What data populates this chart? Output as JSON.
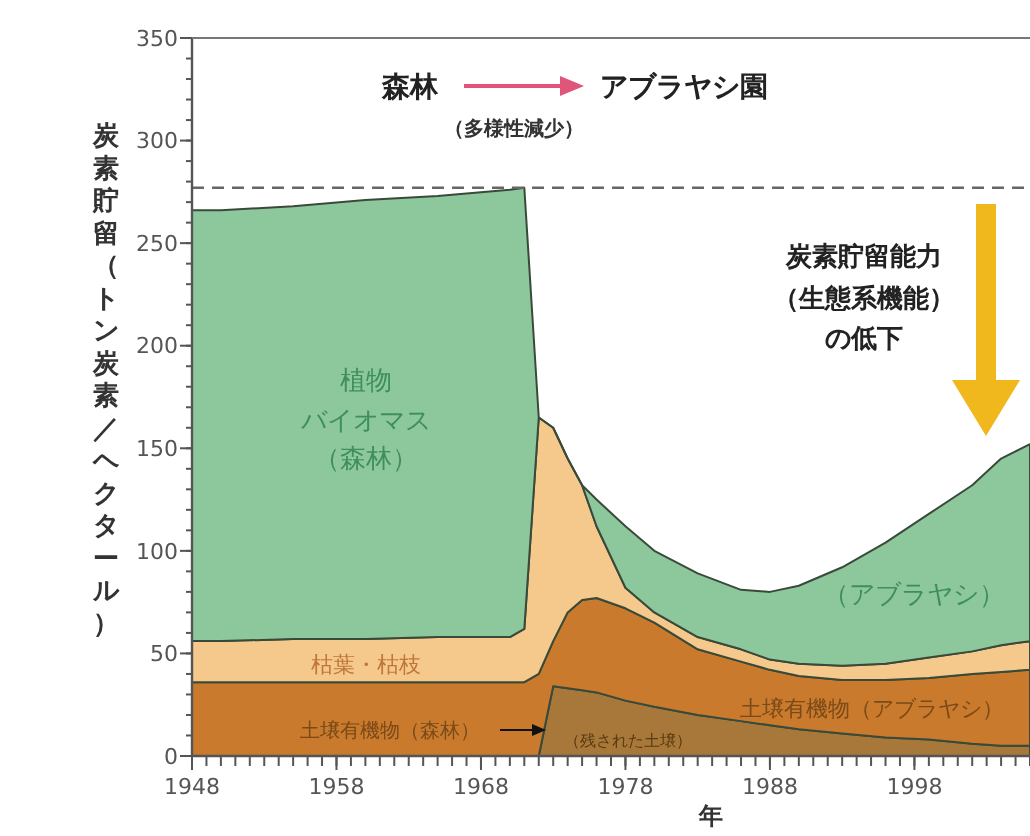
{
  "chart_data": {
    "type": "area",
    "stacked": true,
    "xlabel": "年",
    "ylabel": "炭素貯留（トン炭素／ヘクタール）",
    "x": [
      1948,
      1950,
      1955,
      1960,
      1965,
      1970,
      1971,
      1972,
      1973,
      1974,
      1975,
      1976,
      1978,
      1980,
      1983,
      1986,
      1988,
      1990,
      1993,
      1996,
      1999,
      2002,
      2004,
      2006
    ],
    "series": [
      {
        "color": "#a8783a",
        "values": [
          0,
          0,
          0,
          0,
          0,
          0,
          0,
          0,
          34,
          33,
          32,
          31,
          27,
          24,
          20,
          17,
          15,
          13,
          11,
          9,
          8,
          6,
          5,
          5
        ]
      },
      {
        "color": "#c97a2c",
        "values": [
          36,
          36,
          36,
          36,
          36,
          36,
          36,
          40,
          22,
          37,
          44,
          46,
          45,
          41,
          32,
          29,
          27,
          26,
          26,
          28,
          30,
          34,
          36,
          37
        ]
      },
      {
        "color": "#f5c98c",
        "values": [
          20,
          20,
          21,
          21,
          22,
          22,
          26,
          125,
          104,
          75,
          56,
          35,
          10,
          5,
          6,
          6,
          5,
          6,
          7,
          8,
          10,
          11,
          13,
          14
        ]
      },
      {
        "color": "#8dc89d",
        "values": [
          210,
          210,
          211,
          214,
          215,
          218,
          215,
          0,
          0,
          0,
          0,
          13,
          30,
          30,
          31,
          29,
          33,
          38,
          48,
          59,
          70,
          81,
          91,
          96
        ]
      }
    ],
    "xlim": [
      1948,
      2006
    ],
    "xticks": [
      1948,
      1958,
      1968,
      1978,
      1988,
      1998
    ],
    "ylim": [
      0,
      350
    ],
    "yticks": [
      0,
      50,
      100,
      150,
      200,
      250,
      300,
      350
    ],
    "ref_lines": [
      {
        "axis": "y",
        "value": 277,
        "line_style": "dashed",
        "color": "#666666"
      }
    ],
    "annotations": [
      "森林",
      "アブラヤシ園",
      "（多様性減少）",
      "炭素貯留能力",
      "（生態系機能）",
      "の低下",
      "植物",
      "バイオマス",
      "（森林）",
      "枯葉・枯枝",
      "土壌有機物（森林）",
      "（残された土壌）",
      "土壌有機物（アブラヤシ）",
      "（アブラヤシ）"
    ]
  }
}
